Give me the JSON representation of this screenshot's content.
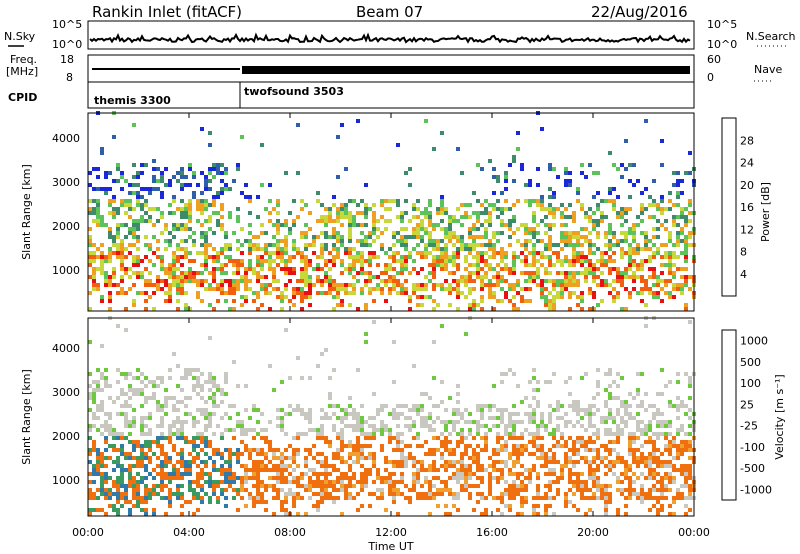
{
  "header": {
    "title": "Rankin Inlet (fitACF)",
    "beam": "Beam 07",
    "date": "22/Aug/2016"
  },
  "strip_noise": {
    "left_label": "N.Sky",
    "right_label": "N.Search",
    "left_ticks": [
      "10^5",
      "10^0"
    ],
    "right_ticks": [
      "10^5",
      "10^0"
    ]
  },
  "strip_freq": {
    "left_label": "Freq.",
    "left_unit": "[MHz]",
    "right_label": "Nave",
    "left_ticks": [
      "18",
      "8"
    ],
    "right_ticks": [
      "60",
      "0"
    ]
  },
  "cpid": {
    "label": "CPID",
    "segments": [
      {
        "name": "themis 3300",
        "start": 0.0,
        "end": 6.0
      },
      {
        "name": "twofsound 3503",
        "start": 6.0,
        "end": 24.0
      }
    ]
  },
  "chart_data": [
    {
      "type": "heatmap",
      "panel": "power",
      "ylabel": "Slant Range [km]",
      "y_ticks": [
        "1000",
        "2000",
        "3000",
        "4000"
      ],
      "y_values": [
        1000,
        2000,
        3000,
        4000
      ],
      "ylim": [
        200,
        4600
      ],
      "xlim": [
        0,
        24
      ],
      "colorbar_label": "Power [dB]",
      "colorbar_ticks": [
        "4",
        "8",
        "12",
        "16",
        "20",
        "24",
        "28"
      ],
      "colorbar_colors": [
        "#1a28d8",
        "#2f5fa8",
        "#3f8a6a",
        "#5cc25a",
        "#c8d83a",
        "#f0a020",
        "#f06010",
        "#e81010"
      ]
    },
    {
      "type": "heatmap",
      "panel": "velocity",
      "ylabel": "Slant Range [km]",
      "y_ticks": [
        "1000",
        "2000",
        "3000",
        "4000"
      ],
      "y_values": [
        1000,
        2000,
        3000,
        4000
      ],
      "ylim": [
        200,
        4600
      ],
      "xlim": [
        0,
        24
      ],
      "colorbar_label": "Velocity [m s⁻¹]",
      "colorbar_ticks": [
        "1000",
        "500",
        "100",
        "25",
        "-25",
        "-100",
        "-500",
        "-1000"
      ],
      "colorbar_colors": [
        "#2040c0",
        "#2f7aa8",
        "#3a9a60",
        "#70c840",
        "#c8c8c0",
        "#f0a030",
        "#f07010",
        "#e82010"
      ]
    }
  ],
  "x_axis": {
    "label": "Time UT",
    "ticks": [
      "00:00",
      "04:00",
      "08:00",
      "12:00",
      "16:00",
      "20:00",
      "00:00"
    ],
    "tick_hours": [
      0,
      4,
      8,
      12,
      16,
      20,
      24
    ]
  }
}
